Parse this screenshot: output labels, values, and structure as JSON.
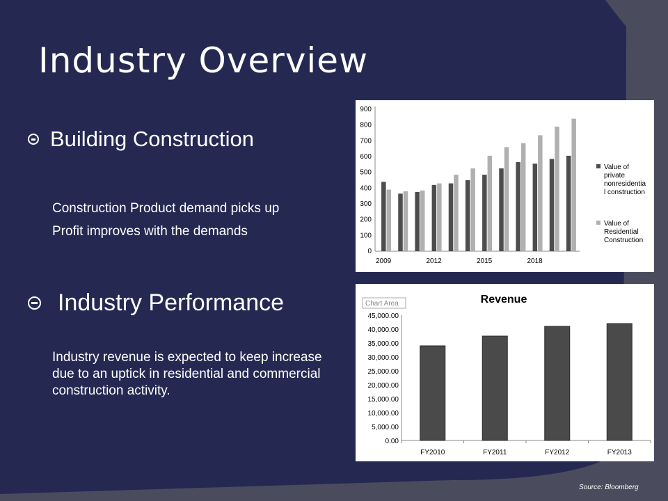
{
  "slide": {
    "title": "Industry Overview",
    "sections": [
      {
        "heading": "Building Construction",
        "items": [
          "Construction Product demand picks up",
          "Profit improves with the demands"
        ]
      },
      {
        "heading": "Industry Performance",
        "text": "Industry revenue is expected to keep increase due to an uptick in residential and commercial construction activity."
      }
    ],
    "source": "Source: Bloomberg"
  },
  "colors": {
    "navy": "#252952",
    "background": "#4a4c5e",
    "dark_bar": "#4d4d4d",
    "light_bar": "#b0b0b0",
    "revenue_bar": "#4a4a4a"
  },
  "chart_data": [
    {
      "type": "bar",
      "title": "",
      "x": [
        2009,
        2010,
        2011,
        2012,
        2013,
        2014,
        2015,
        2016,
        2017,
        2018,
        2019,
        2020
      ],
      "xticks": [
        "2009",
        "2012",
        "2015",
        "2018"
      ],
      "ylim": [
        0,
        900
      ],
      "yticks": [
        0,
        100,
        200,
        300,
        400,
        500,
        600,
        700,
        800,
        900
      ],
      "legend_position": "right",
      "grid": false,
      "series": [
        {
          "name": "Value of private nonresidential construction",
          "legend_lines": [
            "Value of",
            "private",
            "nonresidentia",
            "l construction"
          ],
          "color": "#4d4d4d",
          "values": [
            440,
            365,
            375,
            420,
            430,
            450,
            485,
            525,
            565,
            555,
            585,
            605
          ]
        },
        {
          "name": "Value of Residential Construction",
          "legend_lines": [
            "Value of",
            "Residential",
            "Construction"
          ],
          "color": "#b0b0b0",
          "values": [
            390,
            380,
            385,
            430,
            485,
            525,
            605,
            660,
            685,
            735,
            790,
            840
          ]
        }
      ]
    },
    {
      "type": "bar",
      "title": "Revenue",
      "tooltip": "Chart Area",
      "categories": [
        "FY2010",
        "FY2011",
        "FY2012",
        "FY2013"
      ],
      "values": [
        34000,
        37500,
        41000,
        42000
      ],
      "ylim": [
        0,
        45000
      ],
      "yticks": [
        "0.00",
        "5,000.00",
        "10,000.00",
        "15,000.00",
        "20,000.00",
        "25,000.00",
        "30,000.00",
        "35,000.00",
        "40,000.00",
        "45,000.00"
      ],
      "grid": false
    }
  ]
}
